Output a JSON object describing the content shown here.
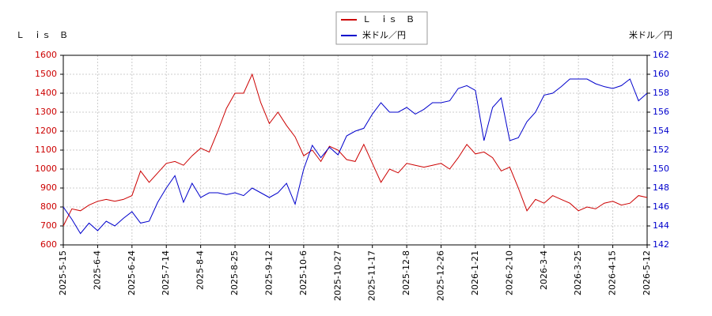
{
  "chart_data": {
    "type": "line",
    "ylabel": "Ｌ　ｉｓ　Ｂ",
    "y2label": "米ドル／円",
    "categories": [
      "2025-5-15",
      null,
      null,
      null,
      "2025-6-4",
      null,
      null,
      null,
      "2025-6-24",
      null,
      null,
      null,
      "2025-7-14",
      null,
      null,
      null,
      "2025-8-4",
      null,
      null,
      null,
      "2025-8-25",
      null,
      null,
      null,
      "2025-9-12",
      null,
      null,
      null,
      "2025-10-6",
      null,
      null,
      null,
      "2025-10-27",
      null,
      null,
      null,
      "2025-11-17",
      null,
      null,
      null,
      "2025-12-8",
      null,
      null,
      null,
      "2025-12-26",
      null,
      null,
      null,
      "2026-1-21",
      null,
      null,
      null,
      "2026-2-10",
      null,
      null,
      null,
      "2026-3-4",
      null,
      null,
      null,
      "2026-3-25",
      null,
      null,
      null,
      "2026-4-15",
      null,
      null,
      null,
      "2026-5-12"
    ],
    "series": [
      {
        "name": "Ｌ　ｉｓ　Ｂ",
        "color": "#cc0000",
        "axis": "y",
        "values": [
          700,
          790,
          780,
          810,
          830,
          840,
          830,
          840,
          860,
          990,
          930,
          980,
          1030,
          1040,
          1020,
          1070,
          1110,
          1090,
          1200,
          1320,
          1400,
          1400,
          1500,
          1350,
          1240,
          1300,
          1230,
          1170,
          1070,
          1100,
          1040,
          1120,
          1100,
          1050,
          1040,
          1130,
          1030,
          930,
          1000,
          980,
          1030,
          1020,
          1010,
          1020,
          1030,
          1000,
          1060,
          1130,
          1080,
          1090,
          1060,
          990,
          1010,
          900,
          780,
          840,
          820,
          860,
          840,
          820,
          780,
          800,
          790,
          820,
          830,
          810,
          820,
          860,
          850
        ]
      },
      {
        "name": "米ドル／円",
        "color": "#0000cc",
        "axis": "y2",
        "values": [
          146,
          144.7,
          143.2,
          144.3,
          143.5,
          144.5,
          144,
          144.8,
          145.5,
          144.3,
          144.5,
          146.5,
          148,
          149.3,
          146.5,
          148.5,
          147,
          147.5,
          147.5,
          147.3,
          147.5,
          147.2,
          148,
          147.5,
          147,
          147.5,
          148.5,
          146.3,
          150,
          152.5,
          151.2,
          152.3,
          151.5,
          153.5,
          154,
          154.3,
          155.8,
          157,
          156,
          156,
          156.5,
          155.8,
          156.3,
          157,
          157,
          157.2,
          158.5,
          158.8,
          158.3,
          153,
          156.5,
          157.5,
          153,
          153.3,
          155,
          156,
          157.8,
          158,
          158.7,
          159.5,
          159.5,
          159.5,
          159,
          158.7,
          158.5,
          158.8,
          159.5,
          157.2,
          158
        ]
      }
    ],
    "ylim": [
      600,
      1600
    ],
    "yticks": [
      600,
      700,
      800,
      900,
      1000,
      1100,
      1200,
      1300,
      1400,
      1500,
      1600
    ],
    "y2lim": [
      142,
      162
    ],
    "y2ticks": [
      142,
      144,
      146,
      148,
      150,
      152,
      154,
      156,
      158,
      160,
      162
    ],
    "grid": true
  }
}
